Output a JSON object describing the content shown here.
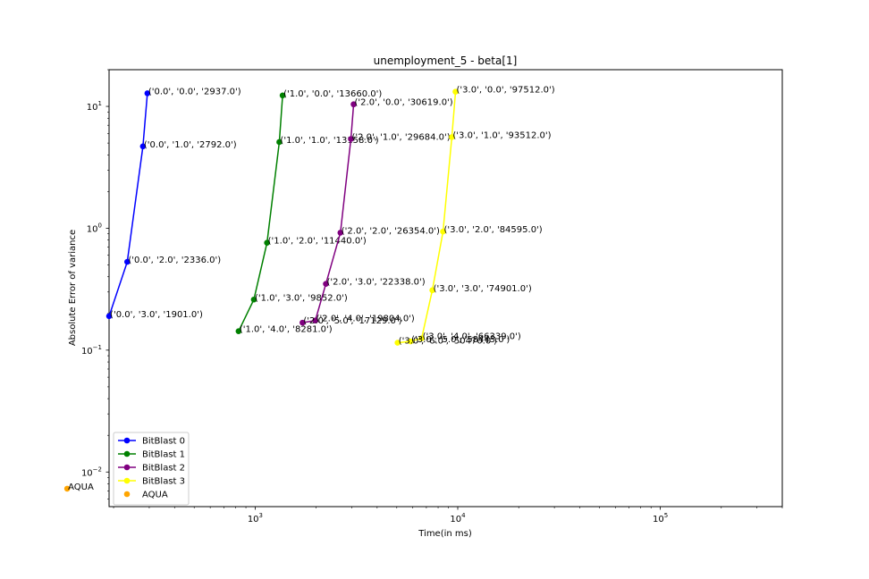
{
  "chart_data": {
    "type": "line",
    "title": "unemployment_5 - beta[1]",
    "xlabel": "Time(in ms)",
    "ylabel": "Absolute Error of variance",
    "xscale": "log",
    "yscale": "log",
    "xlim": [
      190,
      400000
    ],
    "ylim": [
      0.0052,
      20
    ],
    "x_ticks": [
      {
        "value": 1000,
        "label": "10^3"
      },
      {
        "value": 10000,
        "label": "10^4"
      },
      {
        "value": 100000,
        "label": "10^5"
      }
    ],
    "y_ticks": [
      {
        "value": 0.01,
        "label": "10^-2"
      },
      {
        "value": 0.1,
        "label": "10^-1"
      },
      {
        "value": 1,
        "label": "10^0"
      },
      {
        "value": 10,
        "label": "10^1"
      }
    ],
    "legend_position": "lower-left",
    "series": [
      {
        "name": "BitBlast 0",
        "color": "#0000ff",
        "marker": "circle",
        "line": true,
        "points": [
          {
            "x": 2937,
            "y": 12.8,
            "label": "('0.0', '0.0', '2937.0')"
          },
          {
            "x": 2792,
            "y": 4.7,
            "label": "('0.0', '1.0', '2792.0')"
          },
          {
            "x": 2336,
            "y": 0.53,
            "label": "('0.0', '2.0', '2336.0')"
          },
          {
            "x": 1901,
            "y": 0.19,
            "label": "('0.0', '3.0', '1901.0')"
          }
        ]
      },
      {
        "name": "BitBlast 1",
        "color": "#008000",
        "marker": "circle",
        "line": true,
        "points": [
          {
            "x": 13660,
            "y": 12.3,
            "label": "('1.0', '0.0', '13660.0')"
          },
          {
            "x": 13158,
            "y": 5.1,
            "label": "('1.0', '1.0', '13158.0')"
          },
          {
            "x": 11440,
            "y": 0.76,
            "label": "('1.0', '2.0', '11440.0')"
          },
          {
            "x": 9852,
            "y": 0.26,
            "label": "('1.0', '3.0', '9852.0')"
          },
          {
            "x": 8281,
            "y": 0.143,
            "label": "('1.0', '4.0', '8281.0')"
          }
        ]
      },
      {
        "name": "BitBlast 2",
        "color": "#800080",
        "marker": "circle",
        "line": true,
        "points": [
          {
            "x": 30619,
            "y": 10.4,
            "label": "('2.0', '0.0', '30619.0')"
          },
          {
            "x": 29684,
            "y": 5.4,
            "label": "('2.0', '1.0', '29684.0')"
          },
          {
            "x": 26354,
            "y": 0.92,
            "label": "('2.0', '2.0', '26354.0')"
          },
          {
            "x": 22338,
            "y": 0.35,
            "label": "('2.0', '3.0', '22338.0')"
          },
          {
            "x": 19804,
            "y": 0.175,
            "label": "('2.0', '4.0', '19804.0')"
          },
          {
            "x": 17129,
            "y": 0.168,
            "label": "('2.0', '5.0', '17129.0')"
          }
        ]
      },
      {
        "name": "BitBlast 3",
        "color": "#ffff00",
        "marker": "circle",
        "line": true,
        "points": [
          {
            "x": 97512,
            "y": 13.2,
            "label": "('3.0', '0.0', '97512.0')"
          },
          {
            "x": 93512,
            "y": 5.6,
            "label": "('3.0', '1.0', '93512.0')"
          },
          {
            "x": 84595,
            "y": 0.94,
            "label": "('3.0', '2.0', '84595.0')"
          },
          {
            "x": 74901,
            "y": 0.31,
            "label": "('3.0', '3.0', '74901.0')"
          },
          {
            "x": 66339,
            "y": 0.125,
            "label": "('3.0', '4.0', '66339.0')"
          },
          {
            "x": 58445,
            "y": 0.118,
            "label": "('3.0', '5.0', '58445.0')"
          },
          {
            "x": 50470,
            "y": 0.115,
            "label": "('3.0', '6.0', '50470.0')"
          }
        ]
      },
      {
        "name": "AQUA",
        "color": "#ffa500",
        "marker": "circle",
        "line": false,
        "points": [
          {
            "x": 1180,
            "y": 0.0073,
            "label": "AQUA"
          }
        ]
      }
    ]
  }
}
